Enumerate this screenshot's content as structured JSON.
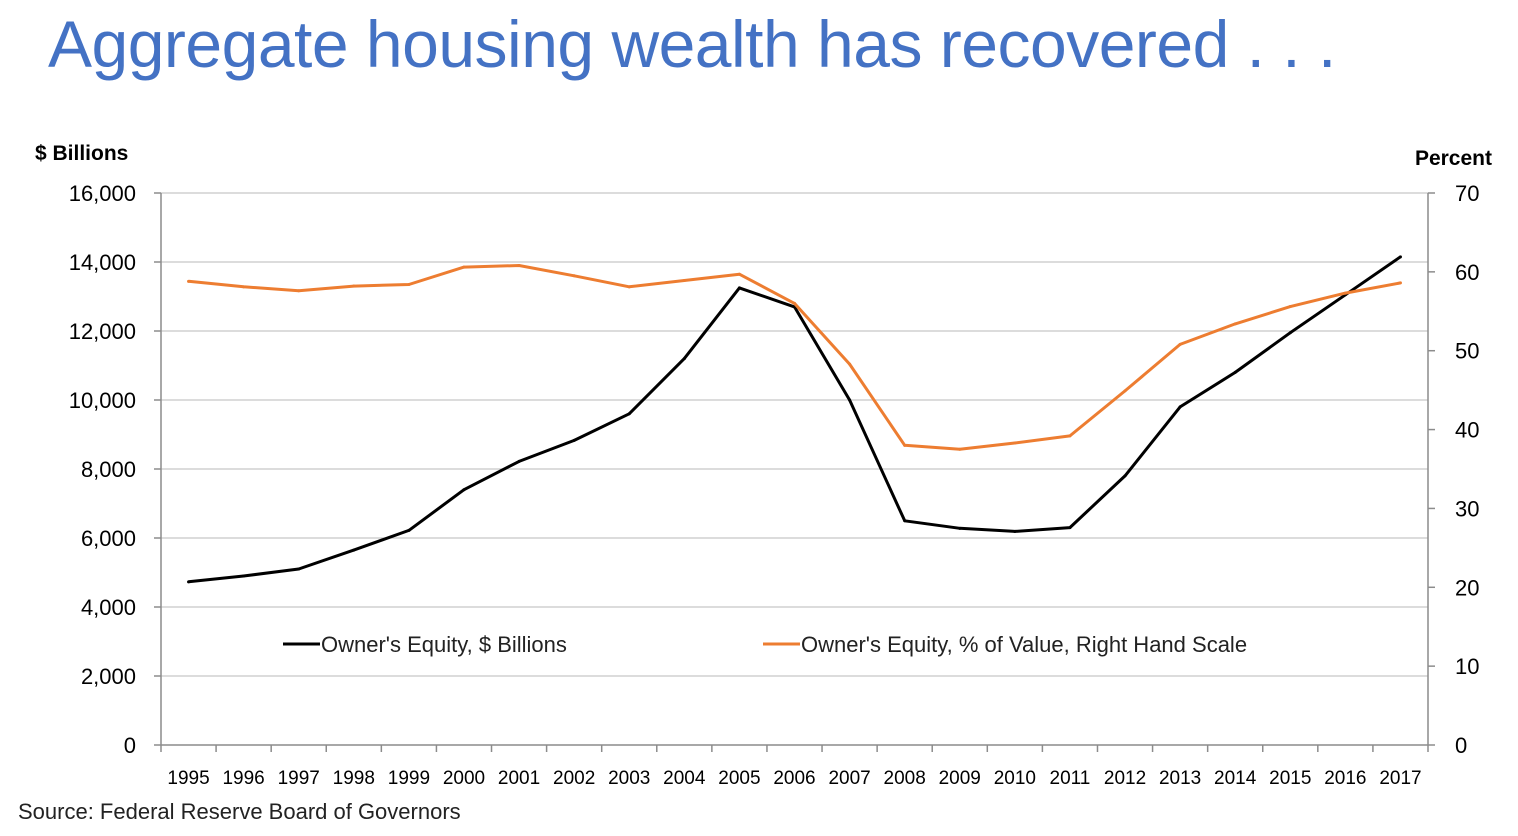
{
  "page": {
    "title": "Aggregate housing wealth has recovered . . .",
    "source": "Source: Federal Reserve Board of Governors"
  },
  "chart_data": {
    "type": "line",
    "title": "",
    "categories": [
      "1995",
      "1996",
      "1997",
      "1998",
      "1999",
      "2000",
      "2001",
      "2002",
      "2003",
      "2004",
      "2005",
      "2006",
      "2007",
      "2008",
      "2009",
      "2010",
      "2011",
      "2012",
      "2013",
      "2014",
      "2015",
      "2016",
      "2017"
    ],
    "left_axis": {
      "label": "$ Billions",
      "ylim": [
        0,
        16000
      ],
      "ticks": [
        0,
        2000,
        4000,
        6000,
        8000,
        10000,
        12000,
        14000,
        16000
      ],
      "tick_labels": [
        "0",
        "2,000",
        "4,000",
        "6,000",
        "8,000",
        "10,000",
        "12,000",
        "14,000",
        "16,000"
      ]
    },
    "right_axis": {
      "label": "Percent",
      "ylim": [
        0,
        70
      ],
      "ticks": [
        0,
        10,
        20,
        30,
        40,
        50,
        60,
        70
      ],
      "tick_labels": [
        "0",
        "10",
        "20",
        "30",
        "40",
        "50",
        "60",
        "70"
      ]
    },
    "grid": true,
    "legend_position": "bottom-inside",
    "series": [
      {
        "name": "Owner's Equity, $ Billions",
        "axis": "left",
        "color": "#000000",
        "values": [
          4730,
          4900,
          5100,
          5650,
          6220,
          7400,
          8220,
          8830,
          9600,
          11200,
          13250,
          12700,
          10000,
          6500,
          6280,
          6190,
          6300,
          7800,
          9800,
          10800,
          11950,
          13050,
          14150
        ]
      },
      {
        "name": "Owner's Equity, % of Value, Right Hand Scale",
        "axis": "right",
        "color": "#ed7d31",
        "values": [
          58.8,
          58.1,
          57.6,
          58.2,
          58.4,
          60.6,
          60.8,
          59.5,
          58.1,
          58.9,
          59.7,
          56.0,
          48.3,
          38.0,
          37.5,
          38.3,
          39.2,
          44.9,
          50.8,
          53.4,
          55.6,
          57.3,
          58.6
        ]
      }
    ]
  }
}
